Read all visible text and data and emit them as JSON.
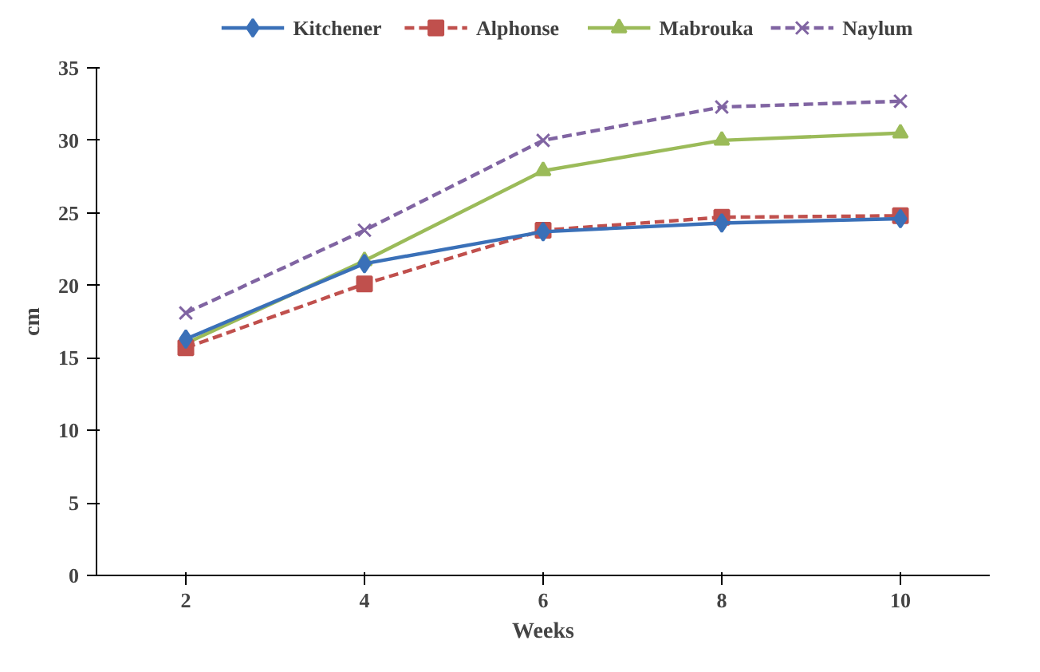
{
  "chart_data": {
    "type": "line",
    "xlabel": "Weeks",
    "ylabel": "cm",
    "x": [
      2,
      4,
      6,
      8,
      10
    ],
    "xlim": [
      1,
      11
    ],
    "xticks": [
      2,
      4,
      6,
      8,
      10
    ],
    "ylim": [
      0,
      35
    ],
    "yticks": [
      0,
      5,
      10,
      15,
      20,
      25,
      30,
      35
    ],
    "grid": false,
    "legend": "top",
    "series": [
      {
        "name": "Kitchener",
        "color": "#3a70b8",
        "marker": "diamond",
        "line_style": "solid",
        "values": [
          16.3,
          21.5,
          23.7,
          24.3,
          24.6
        ]
      },
      {
        "name": "Alphonse",
        "color": "#c0504d",
        "marker": "square",
        "line_style": "dashed",
        "values": [
          15.7,
          20.1,
          23.8,
          24.7,
          24.8
        ]
      },
      {
        "name": "Mabrouka",
        "color": "#9bbb59",
        "marker": "triangle",
        "line_style": "solid",
        "values": [
          16.0,
          21.7,
          27.9,
          30.0,
          30.5
        ]
      },
      {
        "name": "Naylum",
        "color": "#8064a2",
        "marker": "cross",
        "line_style": "dashed",
        "values": [
          18.1,
          23.8,
          30.0,
          32.3,
          32.7
        ]
      }
    ]
  }
}
